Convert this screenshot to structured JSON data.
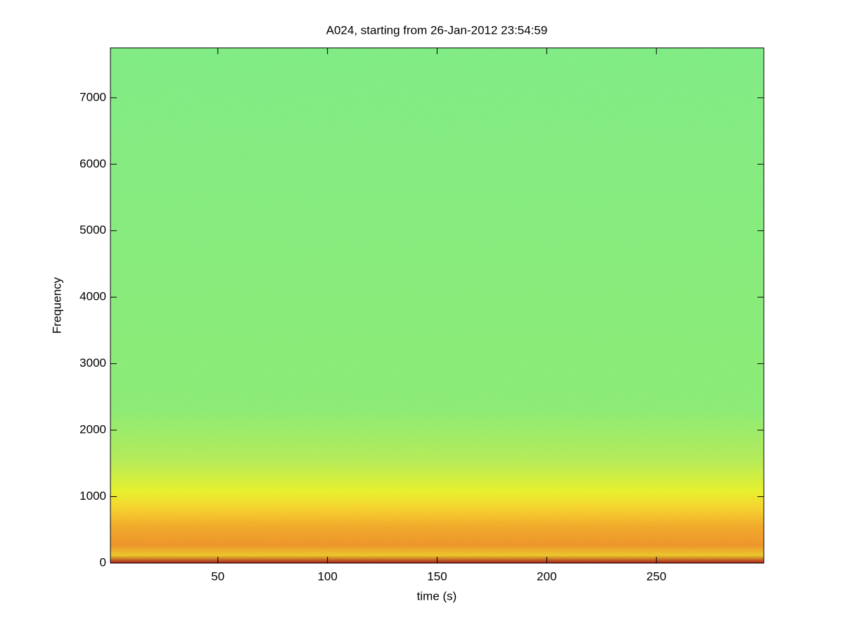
{
  "chart_data": {
    "type": "spectrogram",
    "title": "A024, starting from 26-Jan-2012 23:54:59",
    "x_label": "time (s)",
    "y_label": "Frequency",
    "xlim": [
      1,
      299
    ],
    "xticks": [
      50,
      100,
      150,
      200,
      250
    ],
    "ylim": [
      0,
      7750
    ],
    "yticks": [
      0,
      1000,
      2000,
      3000,
      4000,
      5000,
      6000,
      7000
    ]
  }
}
